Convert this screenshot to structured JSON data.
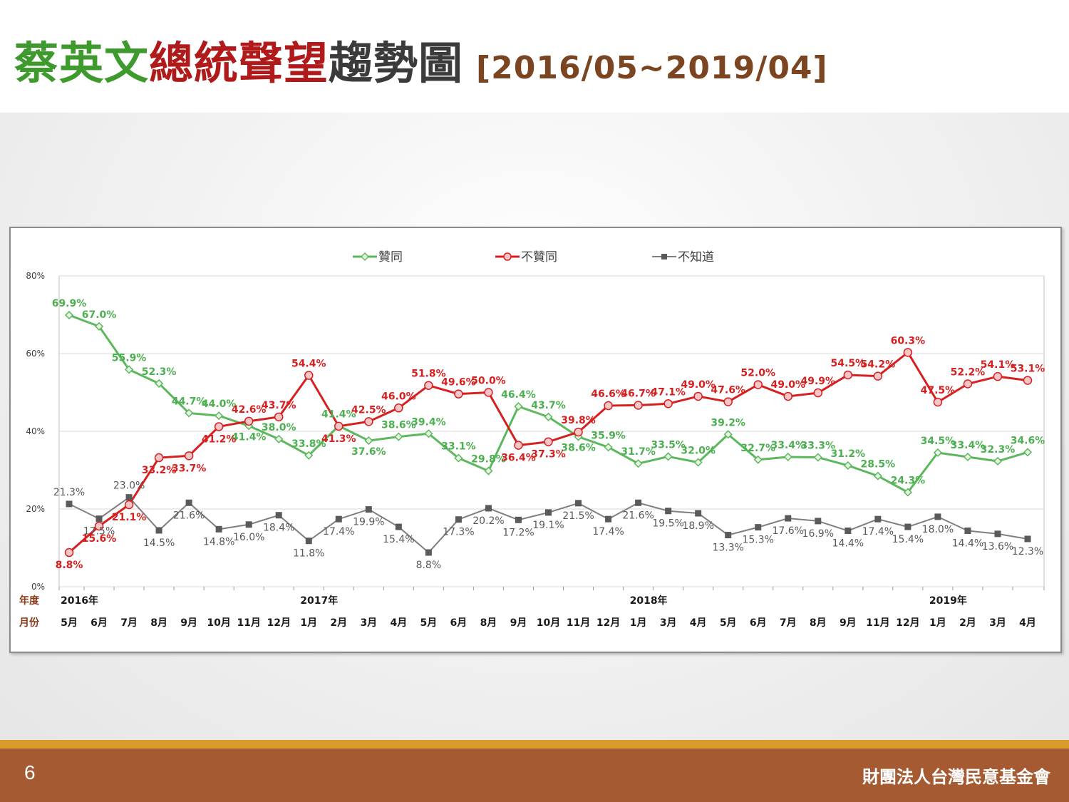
{
  "title": {
    "part1": "蔡英文",
    "part2": "總統聲望",
    "part3": "趨勢圖",
    "range": "[2016/05~2019/04]"
  },
  "footer": {
    "page_number": "6",
    "organization": "財團法人台灣民意基金會"
  },
  "chart_data": {
    "type": "line",
    "categories": [
      "5月",
      "6月",
      "7月",
      "8月",
      "9月",
      "10月",
      "11月",
      "12月",
      "1月",
      "2月",
      "3月",
      "4月",
      "5月",
      "6月",
      "8月",
      "9月",
      "10月",
      "11月",
      "12月",
      "1月",
      "3月",
      "4月",
      "5月",
      "6月",
      "7月",
      "8月",
      "9月",
      "11月",
      "12月",
      "1月",
      "2月",
      "3月",
      "4月"
    ],
    "year_row_label": "年度",
    "month_row_label": "月份",
    "year_labels": [
      {
        "label": "2016年",
        "index": 0
      },
      {
        "label": "2017年",
        "index": 8
      },
      {
        "label": "2018年",
        "index": 19
      },
      {
        "label": "2019年",
        "index": 29
      }
    ],
    "ylim": [
      0,
      80
    ],
    "y_ticks": [
      "0%",
      "20%",
      "40%",
      "60%",
      "80%"
    ],
    "legend_position": "top",
    "grid": true,
    "series": [
      {
        "name": "贊同",
        "color": "#5cb85c",
        "marker": "diamond",
        "values": [
          69.9,
          67.0,
          55.9,
          52.3,
          44.7,
          44.0,
          41.4,
          38.0,
          33.8,
          41.4,
          37.6,
          38.6,
          39.4,
          33.1,
          29.8,
          46.4,
          43.7,
          38.6,
          35.9,
          31.7,
          33.5,
          32.0,
          39.2,
          32.7,
          33.4,
          33.3,
          31.2,
          28.5,
          24.3,
          34.5,
          33.4,
          32.3,
          34.6
        ],
        "labels": [
          "69.9%",
          "67.0%",
          "55.9%",
          "52.3%",
          "44.7%",
          "44.0%",
          "41.4%",
          "38.0%",
          "33.8%",
          "41.4%",
          "37.6%",
          "38.6%",
          "39.4%",
          "33.1%",
          "29.8%",
          "46.4%",
          "43.7%",
          "38.6%",
          "35.9%",
          "31.7%",
          "33.5%",
          "32.0%",
          "39.2%",
          "32.7%",
          "33.4%",
          "33.3%",
          "31.2%",
          "28.5%",
          "24.3%",
          "34.5%",
          "33.4%",
          "32.3%",
          "34.6%"
        ]
      },
      {
        "name": "不贊同",
        "color": "#d62020",
        "marker": "circle",
        "values": [
          8.8,
          15.6,
          21.1,
          33.2,
          33.7,
          41.2,
          42.6,
          43.7,
          54.4,
          41.3,
          42.5,
          46.0,
          51.8,
          49.6,
          50.0,
          36.4,
          37.3,
          39.8,
          46.6,
          46.7,
          47.1,
          49.0,
          47.6,
          52.0,
          49.0,
          49.9,
          54.5,
          54.2,
          60.3,
          47.5,
          52.2,
          54.1,
          53.1
        ],
        "labels": [
          "8.8%",
          "15.6%",
          "21.1%",
          "33.2%",
          "33.7%",
          "41.2%",
          "42.6%",
          "43.7%",
          "54.4%",
          "41.3%",
          "42.5%",
          "46.0%",
          "51.8%",
          "49.6%",
          "50.0%",
          "36.4%",
          "37.3%",
          "39.8%",
          "46.6%",
          "46.7%",
          "47.1%",
          "49.0%",
          "47.6%",
          "52.0%",
          "49.0%",
          "49.9%",
          "54.5%",
          "54.2%",
          "60.3%",
          "47.5%",
          "52.2%",
          "54.1%",
          "53.1%"
        ]
      },
      {
        "name": "不知道",
        "color": "#7f7f7f",
        "marker": "square",
        "values": [
          21.3,
          17.5,
          23.0,
          14.5,
          21.6,
          14.8,
          16.0,
          18.4,
          11.8,
          17.4,
          19.9,
          15.4,
          8.8,
          17.3,
          20.2,
          17.2,
          19.1,
          21.5,
          17.4,
          21.6,
          19.5,
          18.9,
          13.3,
          15.3,
          17.6,
          16.9,
          14.4,
          17.4,
          15.4,
          18.0,
          14.4,
          13.6,
          12.3
        ],
        "labels": [
          "21.3%",
          "17.5%",
          "23.0%",
          "14.5%",
          "21.6%",
          "14.8%",
          "16.0%",
          "18.4%",
          "11.8%",
          "17.4%",
          "19.9%",
          "15.4%",
          "8.8%",
          "17.3%",
          "20.2%",
          "17.2%",
          "19.1%",
          "21.5%",
          "17.4%",
          "21.6%",
          "19.5%",
          "18.9%",
          "13.3%",
          "15.3%",
          "17.6%",
          "16.9%",
          "14.4%",
          "17.4%",
          "15.4%",
          "18.0%",
          "14.4%",
          "13.6%",
          "12.3%"
        ]
      }
    ]
  }
}
